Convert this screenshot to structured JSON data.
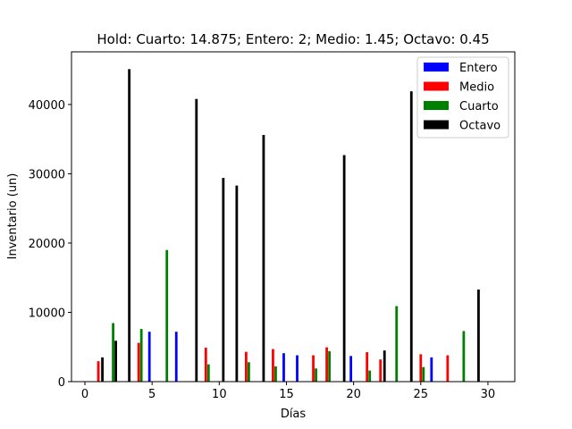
{
  "chart_data": {
    "type": "bar",
    "title": "Hold: Cuarto: 14.875; Entero: 2; Medio: 1.45; Octavo: 0.45",
    "xlabel": "Días",
    "ylabel": "Inventario (un)",
    "xlim": [
      -1,
      32
    ],
    "ylim": [
      0,
      47600
    ],
    "xticks": [
      0,
      5,
      10,
      15,
      20,
      25,
      30
    ],
    "yticks": [
      0,
      10000,
      20000,
      30000,
      40000
    ],
    "grid": false,
    "legend_position": "top-right",
    "series": [
      {
        "name": "Entero",
        "color": "#0000ff",
        "points": [
          [
            4.8,
            7200
          ],
          [
            6.8,
            7200
          ],
          [
            14.8,
            4100
          ],
          [
            15.8,
            3800
          ],
          [
            19.8,
            3700
          ],
          [
            25.8,
            3500
          ]
        ]
      },
      {
        "name": "Medio",
        "color": "#ff0000",
        "points": [
          [
            1.0,
            2950
          ],
          [
            4.0,
            5600
          ],
          [
            9.0,
            4900
          ],
          [
            12.0,
            4300
          ],
          [
            14.0,
            4700
          ],
          [
            17.0,
            3800
          ],
          [
            18.0,
            4950
          ],
          [
            21.0,
            4250
          ],
          [
            22.0,
            3200
          ],
          [
            25.0,
            3950
          ],
          [
            27.0,
            3800
          ]
        ]
      },
      {
        "name": "Cuarto",
        "color": "#008000",
        "points": [
          [
            2.1,
            8450
          ],
          [
            4.2,
            7600
          ],
          [
            6.1,
            19000
          ],
          [
            9.2,
            2500
          ],
          [
            12.2,
            2800
          ],
          [
            14.2,
            2200
          ],
          [
            17.2,
            1900
          ],
          [
            18.2,
            4400
          ],
          [
            21.2,
            1600
          ],
          [
            23.2,
            10900
          ],
          [
            25.2,
            2100
          ],
          [
            28.2,
            7300
          ]
        ]
      },
      {
        "name": "Octavo",
        "color": "#000000",
        "points": [
          [
            1.3,
            3500
          ],
          [
            2.3,
            5900
          ],
          [
            3.3,
            45100
          ],
          [
            8.3,
            40800
          ],
          [
            10.3,
            29400
          ],
          [
            11.3,
            28300
          ],
          [
            13.3,
            35600
          ],
          [
            19.3,
            32700
          ],
          [
            22.3,
            4500
          ],
          [
            24.3,
            41900
          ],
          [
            29.3,
            13300
          ]
        ]
      }
    ]
  }
}
